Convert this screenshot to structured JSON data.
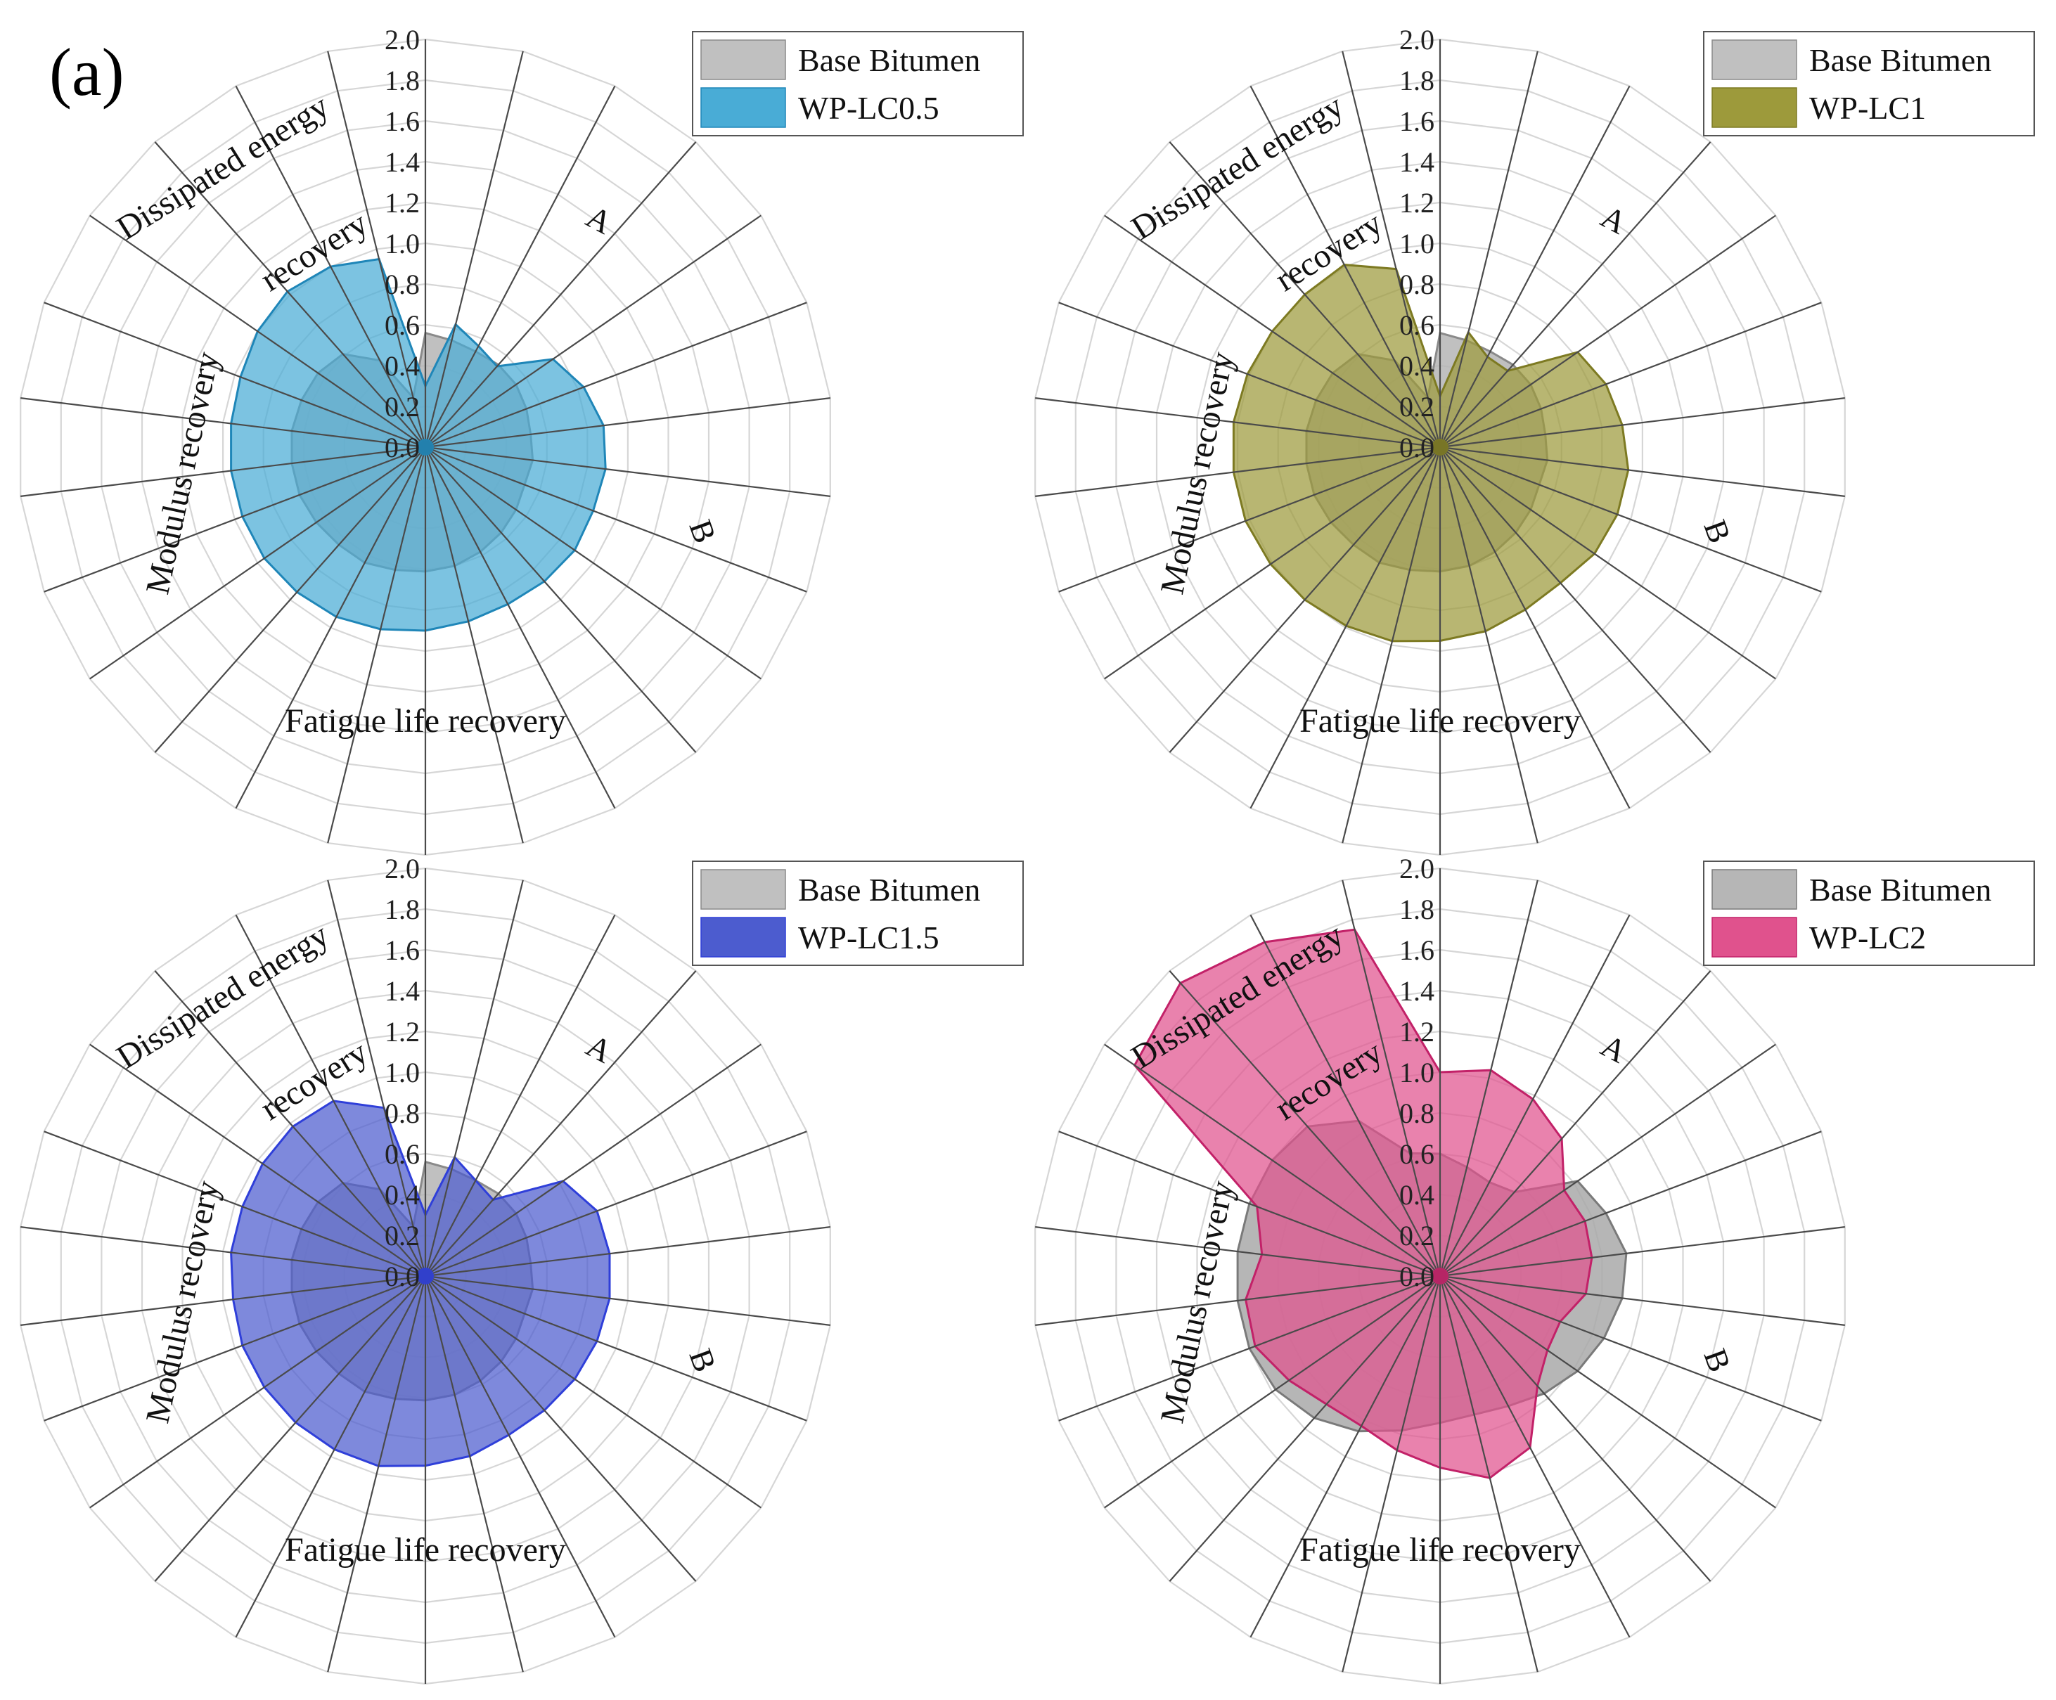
{
  "panel_label": "(a)",
  "colors": {
    "base": "#bdbdbd",
    "base_stroke": "#8a8a8a",
    "grid": "#d6d6d6",
    "spoke": "#4a4a4a"
  },
  "chart_data": [
    {
      "type": "radar",
      "legend": {
        "position": "top-right",
        "entries": [
          "Base Bitumen",
          "WP-LC0.5"
        ]
      },
      "series": [
        {
          "name": "Base Bitumen",
          "color": "#b5b5b5",
          "stroke": "#8a8a8a",
          "values": [
            0.56,
            0.54,
            0.53,
            0.54,
            0.54,
            0.53,
            0.52,
            0.53,
            0.52,
            0.54,
            0.56,
            0.58,
            0.6,
            0.61,
            0.62,
            0.64,
            0.64,
            0.65,
            0.66,
            0.66,
            0.66,
            0.65,
            0.64,
            0.61,
            0.48,
            0.25
          ]
        },
        {
          "name": "WP-LC0.5",
          "color": "#49acd6",
          "stroke": "#1f86b8",
          "values": [
            0.3,
            0.62,
            0.56,
            0.53,
            0.76,
            0.83,
            0.88,
            0.89,
            0.88,
            0.89,
            0.88,
            0.87,
            0.88,
            0.9,
            0.92,
            0.94,
            0.95,
            0.96,
            0.96,
            0.96,
            0.96,
            0.97,
            1.0,
            1.02,
            1.0,
            0.95
          ]
        }
      ],
      "radial_ticks": [
        "0.0",
        "0.2",
        "0.4",
        "0.6",
        "0.8",
        "1.0",
        "1.2",
        "1.4",
        "1.6",
        "1.8",
        "2.0"
      ],
      "rmax": 2.0,
      "category_labels": [
        "A",
        "B",
        "Fatigue life recovery",
        "Modulus recovery",
        "Dissipated energy",
        "recovery"
      ]
    },
    {
      "type": "radar",
      "legend": {
        "position": "top-right",
        "entries": [
          "Base Bitumen",
          "WP-LC1"
        ]
      },
      "series": [
        {
          "name": "Base Bitumen",
          "color": "#b5b5b5",
          "stroke": "#8a8a8a",
          "values": [
            0.56,
            0.54,
            0.53,
            0.54,
            0.54,
            0.53,
            0.52,
            0.53,
            0.52,
            0.54,
            0.56,
            0.58,
            0.6,
            0.61,
            0.62,
            0.64,
            0.64,
            0.65,
            0.66,
            0.66,
            0.66,
            0.65,
            0.64,
            0.61,
            0.48,
            0.25
          ]
        },
        {
          "name": "WP-LC1",
          "color": "#9d9a3b",
          "stroke": "#7d7a22",
          "values": [
            0.25,
            0.58,
            0.5,
            0.5,
            0.82,
            0.87,
            0.9,
            0.93,
            0.93,
            0.92,
            0.89,
            0.9,
            0.93,
            0.95,
            0.98,
            0.99,
            1.0,
            1.01,
            1.02,
            1.02,
            1.02,
            1.01,
            1.0,
            1.0,
            1.01,
            0.9
          ]
        }
      ],
      "radial_ticks": [
        "0.0",
        "0.2",
        "0.4",
        "0.6",
        "0.8",
        "1.0",
        "1.2",
        "1.4",
        "1.6",
        "1.8",
        "2.0"
      ],
      "rmax": 2.0,
      "category_labels": [
        "A",
        "B",
        "Fatigue life recovery",
        "Modulus recovery",
        "Dissipated energy",
        "recovery"
      ]
    },
    {
      "type": "radar",
      "legend": {
        "position": "top-right",
        "entries": [
          "Base Bitumen",
          "WP-LC1.5"
        ]
      },
      "series": [
        {
          "name": "Base Bitumen",
          "color": "#b5b5b5",
          "stroke": "#8a8a8a",
          "values": [
            0.56,
            0.54,
            0.53,
            0.54,
            0.54,
            0.53,
            0.52,
            0.53,
            0.52,
            0.54,
            0.56,
            0.58,
            0.6,
            0.61,
            0.62,
            0.64,
            0.64,
            0.65,
            0.66,
            0.66,
            0.66,
            0.65,
            0.64,
            0.61,
            0.48,
            0.25
          ]
        },
        {
          "name": "WP-LC1.5",
          "color": "#4c5ccf",
          "stroke": "#2f3fd9",
          "values": [
            0.3,
            0.6,
            0.53,
            0.5,
            0.82,
            0.9,
            0.91,
            0.91,
            0.9,
            0.89,
            0.88,
            0.88,
            0.91,
            0.93,
            0.96,
            0.96,
            0.96,
            0.96,
            0.96,
            0.95,
            0.96,
            0.96,
            0.97,
            0.98,
            0.97,
            0.85
          ]
        }
      ],
      "radial_ticks": [
        "0.0",
        "0.2",
        "0.4",
        "0.6",
        "0.8",
        "1.0",
        "1.2",
        "1.4",
        "1.6",
        "1.8",
        "2.0"
      ],
      "rmax": 2.0,
      "category_labels": [
        "A",
        "B",
        "Fatigue life recovery",
        "Modulus recovery",
        "Dissipated energy",
        "recovery"
      ]
    },
    {
      "type": "radar",
      "legend": {
        "position": "top-right",
        "entries": [
          "Base Bitumen",
          "WP-LC2"
        ]
      },
      "series": [
        {
          "name": "Base Bitumen",
          "color": "#a9a9a9",
          "stroke": "#7a7a7a",
          "values": [
            0.6,
            0.55,
            0.52,
            0.55,
            0.82,
            0.87,
            0.92,
            0.9,
            0.86,
            0.82,
            0.77,
            0.72,
            0.7,
            0.72,
            0.78,
            0.86,
            0.93,
            0.98,
            1.0,
            1.0,
            1.0,
            1.0,
            1.0,
            0.98,
            0.86,
            0.62
          ]
        },
        {
          "name": "WP-LC2",
          "color": "#e0528d",
          "stroke": "#c22168",
          "values": [
            1.0,
            1.04,
            0.98,
            0.9,
            0.74,
            0.76,
            0.75,
            0.72,
            0.63,
            0.64,
            0.72,
            0.95,
            1.02,
            0.94,
            0.88,
            0.83,
            0.84,
            0.9,
            0.97,
            0.96,
            0.88,
            0.96,
            1.82,
            1.92,
            1.85,
            1.75
          ]
        }
      ],
      "radial_ticks": [
        "0.0",
        "0.2",
        "0.4",
        "0.6",
        "0.8",
        "1.0",
        "1.2",
        "1.4",
        "1.6",
        "1.8",
        "2.0"
      ],
      "rmax": 2.0,
      "category_labels": [
        "A",
        "B",
        "Fatigue life recovery",
        "Modulus recovery",
        "Dissipated energy",
        "recovery"
      ]
    }
  ]
}
